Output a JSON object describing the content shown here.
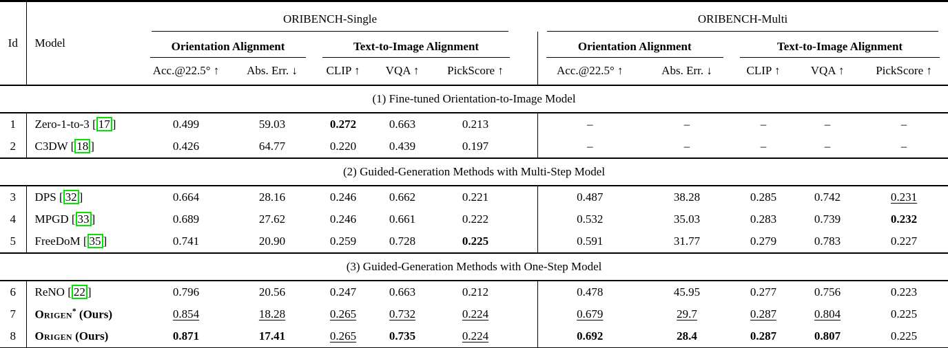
{
  "table": {
    "header": {
      "id_label": "Id",
      "model_label": "Model",
      "bench_groups": [
        "ORIBENCH-Single",
        "ORIBENCH-Multi"
      ],
      "metric_groups": [
        "Orientation Alignment",
        "Text-to-Image Alignment"
      ],
      "sub_columns": [
        "Acc.@22.5° ↑",
        "Abs. Err. ↓",
        "CLIP ↑",
        "VQA ↑",
        "PickScore ↑"
      ]
    },
    "sections": [
      {
        "title": "(1) Fine-tuned Orientation-to-Image Model",
        "rows": [
          {
            "id": "1",
            "model": {
              "text": "Zero-1-to-3",
              "cite": "17"
            },
            "cells": [
              {
                "v": "0.499"
              },
              {
                "v": "59.03"
              },
              {
                "v": "0.272",
                "s": "b"
              },
              {
                "v": "0.663"
              },
              {
                "v": "0.213"
              },
              {
                "v": "–"
              },
              {
                "v": "–"
              },
              {
                "v": "–"
              },
              {
                "v": "–"
              },
              {
                "v": "–"
              }
            ]
          },
          {
            "id": "2",
            "model": {
              "text": "C3DW",
              "cite": "18"
            },
            "cells": [
              {
                "v": "0.426"
              },
              {
                "v": "64.77"
              },
              {
                "v": "0.220"
              },
              {
                "v": "0.439"
              },
              {
                "v": "0.197"
              },
              {
                "v": "–"
              },
              {
                "v": "–"
              },
              {
                "v": "–"
              },
              {
                "v": "–"
              },
              {
                "v": "–"
              }
            ]
          }
        ]
      },
      {
        "title": "(2) Guided-Generation Methods with Multi-Step Model",
        "rows": [
          {
            "id": "3",
            "model": {
              "text": "DPS",
              "cite": "32"
            },
            "cells": [
              {
                "v": "0.664"
              },
              {
                "v": "28.16"
              },
              {
                "v": "0.246"
              },
              {
                "v": "0.662"
              },
              {
                "v": "0.221"
              },
              {
                "v": "0.487"
              },
              {
                "v": "38.28"
              },
              {
                "v": "0.285"
              },
              {
                "v": "0.742"
              },
              {
                "v": "0.231",
                "s": "u"
              }
            ]
          },
          {
            "id": "4",
            "model": {
              "text": "MPGD",
              "cite": "33"
            },
            "cells": [
              {
                "v": "0.689"
              },
              {
                "v": "27.62"
              },
              {
                "v": "0.246"
              },
              {
                "v": "0.661"
              },
              {
                "v": "0.222"
              },
              {
                "v": "0.532"
              },
              {
                "v": "35.03"
              },
              {
                "v": "0.283"
              },
              {
                "v": "0.739"
              },
              {
                "v": "0.232",
                "s": "b"
              }
            ]
          },
          {
            "id": "5",
            "model": {
              "text": "FreeDoM",
              "cite": "35"
            },
            "cells": [
              {
                "v": "0.741"
              },
              {
                "v": "20.90"
              },
              {
                "v": "0.259"
              },
              {
                "v": "0.728"
              },
              {
                "v": "0.225",
                "s": "b"
              },
              {
                "v": "0.591"
              },
              {
                "v": "31.77"
              },
              {
                "v": "0.279"
              },
              {
                "v": "0.783"
              },
              {
                "v": "0.227"
              }
            ]
          }
        ]
      },
      {
        "title": "(3) Guided-Generation Methods with One-Step Model",
        "rows": [
          {
            "id": "6",
            "model": {
              "text": "ReNO",
              "cite": "22"
            },
            "cells": [
              {
                "v": "0.796"
              },
              {
                "v": "20.56"
              },
              {
                "v": "0.247"
              },
              {
                "v": "0.663"
              },
              {
                "v": "0.212"
              },
              {
                "v": "0.478"
              },
              {
                "v": "45.95"
              },
              {
                "v": "0.277"
              },
              {
                "v": "0.756"
              },
              {
                "v": "0.223"
              }
            ]
          },
          {
            "id": "7",
            "model": {
              "text": "Origen",
              "smallcaps": true,
              "bold": true,
              "sup": "*",
              "suffix": " (Ours)"
            },
            "cells": [
              {
                "v": "0.854",
                "s": "u"
              },
              {
                "v": "18.28",
                "s": "u"
              },
              {
                "v": "0.265",
                "s": "u"
              },
              {
                "v": "0.732",
                "s": "u"
              },
              {
                "v": "0.224",
                "s": "u"
              },
              {
                "v": "0.679",
                "s": "u"
              },
              {
                "v": "29.7",
                "s": "u"
              },
              {
                "v": "0.287",
                "s": "u"
              },
              {
                "v": "0.804",
                "s": "u"
              },
              {
                "v": "0.225"
              }
            ]
          },
          {
            "id": "8",
            "model": {
              "text": "Origen",
              "smallcaps": true,
              "bold": true,
              "suffix": " (Ours)"
            },
            "cells": [
              {
                "v": "0.871",
                "s": "b"
              },
              {
                "v": "17.41",
                "s": "b"
              },
              {
                "v": "0.265",
                "s": "u"
              },
              {
                "v": "0.735",
                "s": "b"
              },
              {
                "v": "0.224",
                "s": "u"
              },
              {
                "v": "0.692",
                "s": "b"
              },
              {
                "v": "28.4",
                "s": "b"
              },
              {
                "v": "0.287",
                "s": "b"
              },
              {
                "v": "0.807",
                "s": "b"
              },
              {
                "v": "0.225"
              }
            ]
          }
        ]
      }
    ],
    "colors": {
      "citation_box": "#00e400",
      "text": "#000000",
      "background": "#ffffff"
    }
  }
}
